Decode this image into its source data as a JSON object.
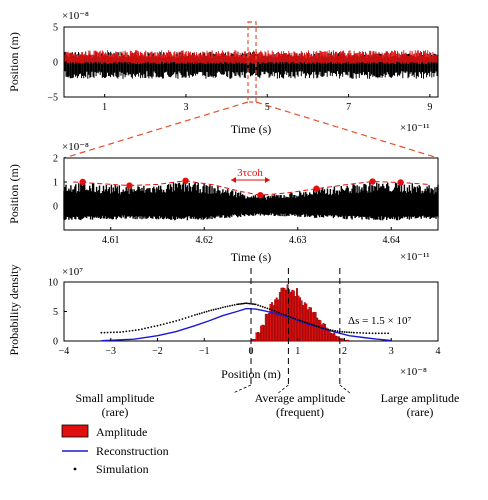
{
  "colors": {
    "amplitude": "#e01010",
    "reconstruction": "#1a1ad6",
    "simulation": "#000000",
    "zoom": "#e8502a",
    "signal": "#000000"
  },
  "chart_data": [
    {
      "type": "line",
      "panel": "top",
      "xlabel": "Time (s)",
      "ylabel": "Position (m)",
      "x_exponent": "×10⁻¹¹",
      "y_exponent": "×10⁻⁸",
      "xlim": [
        0,
        9.2
      ],
      "ylim": [
        -5,
        5
      ],
      "xticks": [
        1,
        3,
        5,
        7,
        9
      ],
      "yticks": [
        -5,
        0,
        5
      ],
      "signal_envelope": {
        "black": [
          -2.4,
          1.5
        ],
        "red": [
          -0.3,
          1.7
        ]
      },
      "zoom_window_x": [
        4.6,
        4.65
      ],
      "grid": false
    },
    {
      "type": "line",
      "panel": "middle",
      "xlabel": "Time (s)",
      "ylabel": "Position (m)",
      "x_exponent": "×10⁻¹¹",
      "y_exponent": "×10⁻⁸",
      "xlim": [
        4.605,
        4.645
      ],
      "ylim": [
        -1,
        2
      ],
      "xticks": [
        4.61,
        4.62,
        4.63,
        4.64
      ],
      "yticks": [
        0,
        1,
        2
      ],
      "annotation": "3τcoh",
      "red_envelope": {
        "x": [
          4.606,
          4.609,
          4.612,
          4.615,
          4.618,
          4.621,
          4.624,
          4.626,
          4.629,
          4.632,
          4.635,
          4.638,
          4.641,
          4.644
        ],
        "y": [
          1.0,
          0.93,
          0.85,
          0.9,
          1.05,
          0.88,
          0.6,
          0.45,
          0.55,
          0.72,
          0.88,
          1.02,
          0.98,
          0.9
        ]
      },
      "red_dots": [
        {
          "x": 4.607,
          "y": 1.0
        },
        {
          "x": 4.612,
          "y": 0.85
        },
        {
          "x": 4.618,
          "y": 1.05
        },
        {
          "x": 4.626,
          "y": 0.45
        },
        {
          "x": 4.632,
          "y": 0.72
        },
        {
          "x": 4.638,
          "y": 1.02
        },
        {
          "x": 4.641,
          "y": 0.98
        }
      ],
      "grid": false
    },
    {
      "type": "bar",
      "panel": "bottom",
      "xlabel": "Position (m)",
      "ylabel": "Probability density",
      "x_exponent": "×10⁻⁸",
      "y_exponent": "×10⁷",
      "xlim": [
        -4,
        4
      ],
      "ylim": [
        0,
        10
      ],
      "xticks": [
        -4,
        -3,
        -2,
        -1,
        0,
        1,
        2,
        3,
        4
      ],
      "yticks": [
        0,
        5,
        10
      ],
      "series": [
        {
          "name": "Amplitude",
          "x": [
            0.05,
            0.15,
            0.25,
            0.35,
            0.45,
            0.55,
            0.65,
            0.75,
            0.85,
            0.95,
            1.05,
            1.15,
            1.25,
            1.35,
            1.45,
            1.55,
            1.65,
            1.75,
            1.85,
            1.95,
            2.05
          ],
          "values": [
            0.3,
            1.5,
            2.8,
            4.5,
            6.2,
            7.3,
            8.3,
            9.0,
            8.6,
            8.2,
            7.4,
            6.6,
            5.6,
            4.8,
            3.8,
            2.9,
            2.1,
            1.3,
            0.8,
            0.4,
            0.15
          ]
        },
        {
          "name": "Reconstruction",
          "x": [
            -3.2,
            -2.5,
            -2.0,
            -1.6,
            -1.2,
            -0.9,
            -0.6,
            -0.3,
            -0.1,
            0.1,
            0.3,
            0.6,
            0.9,
            1.2,
            1.5,
            1.8,
            2.1,
            2.4,
            2.7,
            3.0
          ],
          "values": [
            0.05,
            0.3,
            0.9,
            1.6,
            2.6,
            3.4,
            4.3,
            5.0,
            5.5,
            5.4,
            5.1,
            4.5,
            3.8,
            2.9,
            2.2,
            1.5,
            0.9,
            0.6,
            0.3,
            0.1
          ]
        },
        {
          "name": "Simulation",
          "x": [
            -3.2,
            -2.8,
            -2.4,
            -2.0,
            -1.6,
            -1.2,
            -0.9,
            -0.6,
            -0.3,
            -0.1,
            0.1,
            0.4,
            0.7,
            1.0,
            1.3,
            1.6,
            1.9,
            2.2,
            2.6,
            3.0
          ],
          "values": [
            1.4,
            1.5,
            1.9,
            2.6,
            3.4,
            4.4,
            5.1,
            5.7,
            6.2,
            6.4,
            6.2,
            5.4,
            4.5,
            3.6,
            2.8,
            2.0,
            1.6,
            1.4,
            1.3,
            1.3
          ]
        }
      ],
      "annotation": "Δs = 1.5 × 10⁷",
      "markers": [
        {
          "x": 0.0,
          "label_top": "Small amplitude",
          "label_bottom": "(rare)"
        },
        {
          "x": 0.8,
          "label_top": "Average amplitude",
          "label_bottom": "(frequent)"
        },
        {
          "x": 1.9,
          "label_top": "Large amplitude",
          "label_bottom": "(rare)"
        }
      ],
      "legend": [
        "Amplitude",
        "Reconstruction",
        "Simulation"
      ],
      "legend_position": "bottom-left",
      "grid": false
    }
  ]
}
